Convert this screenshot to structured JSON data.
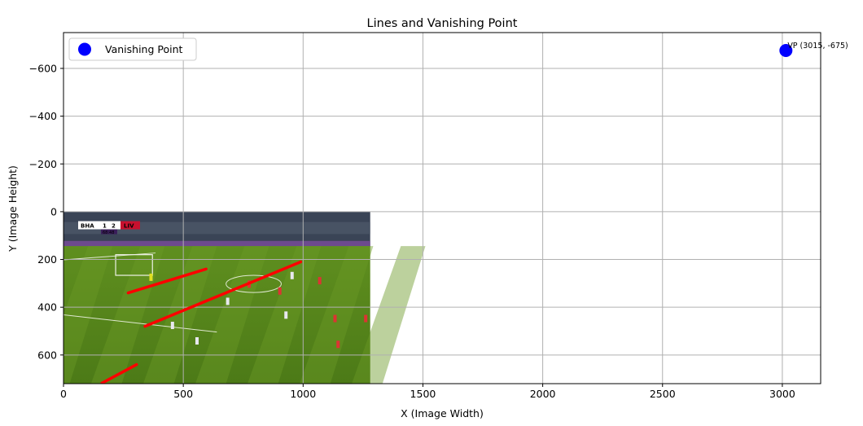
{
  "chart_data": {
    "type": "scatter",
    "title": "Lines and Vanishing Point",
    "xlabel": "X (Image Width)",
    "ylabel": "Y (Image Height)",
    "xlim": [
      0,
      3160
    ],
    "ylim": [
      720,
      -750
    ],
    "y_inverted": true,
    "grid": true,
    "legend_position": "upper-left",
    "xticks": [
      0,
      500,
      1000,
      1500,
      2000,
      2500,
      3000
    ],
    "yticks": [
      -600,
      -400,
      -200,
      0,
      200,
      400,
      600
    ],
    "background_image": {
      "content": "football broadcast frame (BHA 1 - 2 LIV, 68:48)",
      "extent_x": [
        0,
        1280
      ],
      "extent_y": [
        0,
        720
      ],
      "scoreboard": {
        "home": "BHA",
        "home_score": "1",
        "away_score": "2",
        "away": "LIV",
        "clock": "68:48"
      }
    },
    "lines": [
      {
        "x": [
          270,
          595
        ],
        "y": [
          340,
          240
        ],
        "color": "#ff0000"
      },
      {
        "x": [
          340,
          990
        ],
        "y": [
          480,
          210
        ],
        "color": "#ff0000"
      },
      {
        "x": [
          160,
          305
        ],
        "y": [
          718,
          640
        ],
        "color": "#ff0000"
      }
    ],
    "series": [
      {
        "name": "Vanishing Point",
        "x": [
          3015
        ],
        "y": [
          -675
        ],
        "color": "#0000ff"
      }
    ],
    "annotation": {
      "text": "VP (3015, -675)",
      "x": 3015,
      "y": -675,
      "color": "#0000ff"
    }
  }
}
